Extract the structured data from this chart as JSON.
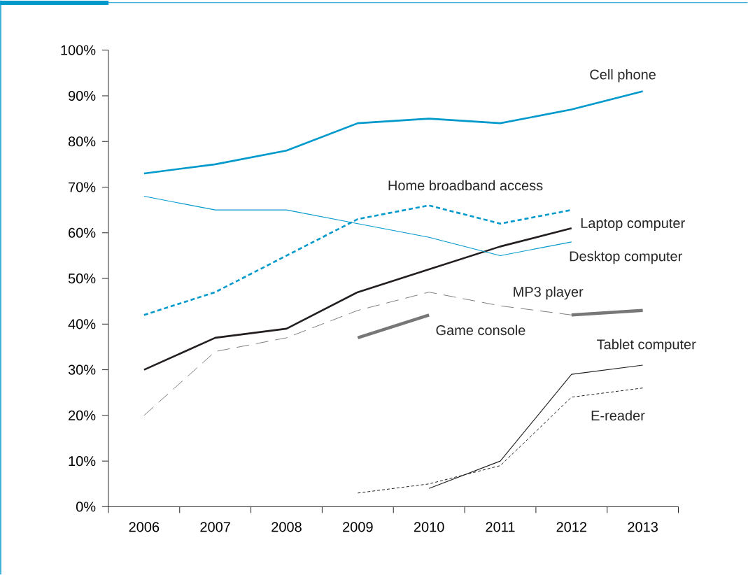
{
  "chart_data": {
    "type": "line",
    "categories": [
      "2006",
      "2007",
      "2008",
      "2009",
      "2010",
      "2011",
      "2012",
      "2013"
    ],
    "series": [
      {
        "name": "Cell phone",
        "color": "#0099cc",
        "line_style": "solid",
        "values": [
          73,
          75,
          78,
          84,
          85,
          84,
          87,
          91
        ]
      },
      {
        "name": "Home broadband access",
        "color": "#0099cc",
        "line_style": "dashed",
        "values": [
          42,
          47,
          55,
          63,
          66,
          62,
          65,
          null
        ]
      },
      {
        "name": "Laptop computer",
        "color": "#231f20",
        "line_style": "solid",
        "values": [
          30,
          37,
          39,
          47,
          52,
          57,
          61,
          null
        ]
      },
      {
        "name": "Desktop computer",
        "color": "#0099cc",
        "line_style": "solid",
        "values": [
          68,
          65,
          65,
          62,
          59,
          55,
          58,
          null
        ]
      },
      {
        "name": "MP3 player",
        "color": "#808080",
        "line_style": "dashed",
        "values": [
          20,
          34,
          37,
          43,
          47,
          44,
          42,
          null
        ]
      },
      {
        "name": "Game console",
        "color": "#777777",
        "line_style": "solid",
        "values": [
          null,
          null,
          null,
          37,
          42,
          null,
          42,
          43
        ]
      },
      {
        "name": "Tablet computer",
        "color": "#231f20",
        "line_style": "solid",
        "values": [
          null,
          null,
          null,
          null,
          4,
          10,
          29,
          31
        ]
      },
      {
        "name": "E-reader",
        "color": "#231f20",
        "line_style": "dashed",
        "values": [
          null,
          null,
          null,
          3,
          5,
          9,
          24,
          26
        ]
      }
    ],
    "ylim": [
      0,
      100
    ],
    "yticks": [
      {
        "value": 0,
        "label": "0%"
      },
      {
        "value": 10,
        "label": "10%"
      },
      {
        "value": 20,
        "label": "20%"
      },
      {
        "value": 30,
        "label": "30%"
      },
      {
        "value": 40,
        "label": "40%"
      },
      {
        "value": 50,
        "label": "50%"
      },
      {
        "value": 60,
        "label": "60%"
      },
      {
        "value": 70,
        "label": "70%"
      },
      {
        "value": 80,
        "label": "80%"
      },
      {
        "value": 90,
        "label": "90%"
      },
      {
        "value": 100,
        "label": "100%"
      }
    ],
    "grid": false,
    "legend": false,
    "marker": "none"
  }
}
